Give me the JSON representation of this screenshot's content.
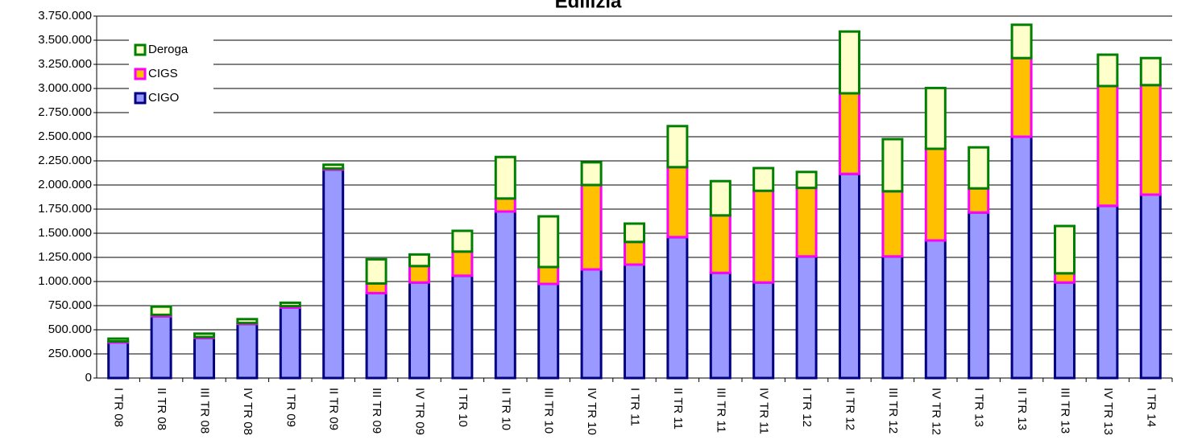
{
  "chart_data": {
    "type": "stacked_bar",
    "title": "Edilizia",
    "categories": [
      "I TR 08",
      "II TR 08",
      "III TR 08",
      "IV TR 08",
      "I TR 09",
      "II TR 09",
      "III TR 09",
      "IV TR 09",
      "I TR 10",
      "II TR 10",
      "III TR 10",
      "IV TR 10",
      "I TR 11",
      "II TR 11",
      "III TR 11",
      "IV TR 11",
      "I TR 12",
      "II TR 12",
      "III TR 12",
      "IV TR 12",
      "I TR 13",
      "II TR 13",
      "III TR 13",
      "IV TR 13",
      "I TR 14"
    ],
    "series": [
      {
        "name": "CIGO",
        "color": "#9999ff",
        "edgecolor": "#000080",
        "values": [
          370000,
          640000,
          415000,
          560000,
          730000,
          2160000,
          880000,
          990000,
          1060000,
          1725000,
          975000,
          1125000,
          1175000,
          1460000,
          1090000,
          990000,
          1260000,
          2115000,
          1260000,
          1425000,
          1715000,
          2500000,
          990000,
          1785000,
          1900000
        ]
      },
      {
        "name": "CIGS",
        "color": "#ffc000",
        "edgecolor": "#ff00ff",
        "values": [
          10000,
          15000,
          10000,
          10000,
          15000,
          10000,
          100000,
          170000,
          250000,
          135000,
          175000,
          875000,
          235000,
          725000,
          595000,
          950000,
          710000,
          835000,
          675000,
          950000,
          250000,
          815000,
          95000,
          1240000,
          1135000
        ]
      },
      {
        "name": "Deroga",
        "color": "#ffffcc",
        "edgecolor": "#008000",
        "values": [
          28000,
          85000,
          35000,
          40000,
          35000,
          40000,
          250000,
          120000,
          215000,
          430000,
          525000,
          235000,
          190000,
          425000,
          355000,
          235000,
          165000,
          640000,
          540000,
          630000,
          425000,
          345000,
          490000,
          325000,
          280000
        ]
      }
    ],
    "ylim": [
      0,
      3750000
    ],
    "yticks": [
      0,
      {
        "value": 250000,
        "label": "250.000"
      },
      {
        "value": 500000,
        "label": "500.000"
      },
      {
        "value": 750000,
        "label": "750.000"
      },
      {
        "value": 1000000,
        "label": "1.000.000"
      },
      {
        "value": 1250000,
        "label": "1.250.000"
      },
      {
        "value": 1500000,
        "label": "1.500.000"
      },
      {
        "value": 1750000,
        "label": "1.750.000"
      },
      {
        "value": 2000000,
        "label": "2.000.000"
      },
      {
        "value": 2250000,
        "label": "2.250.000"
      },
      {
        "value": 2500000,
        "label": "2.500.000"
      },
      {
        "value": 2750000,
        "label": "2.750.000"
      },
      {
        "value": 3000000,
        "label": "3.000.000"
      },
      {
        "value": 3250000,
        "label": "3.250.000"
      },
      {
        "value": 3500000,
        "label": "3.500.000"
      },
      {
        "value": 3750000,
        "label": "3.750.000"
      }
    ],
    "grid": true,
    "legend": "upper left"
  }
}
